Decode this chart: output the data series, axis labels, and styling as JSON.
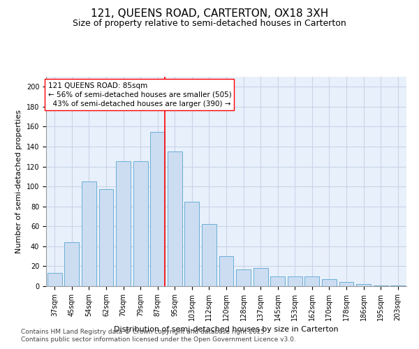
{
  "title1": "121, QUEENS ROAD, CARTERTON, OX18 3XH",
  "title2": "Size of property relative to semi-detached houses in Carterton",
  "xlabel": "Distribution of semi-detached houses by size in Carterton",
  "ylabel": "Number of semi-detached properties",
  "categories": [
    "37sqm",
    "45sqm",
    "54sqm",
    "62sqm",
    "70sqm",
    "79sqm",
    "87sqm",
    "95sqm",
    "103sqm",
    "112sqm",
    "120sqm",
    "128sqm",
    "137sqm",
    "145sqm",
    "153sqm",
    "162sqm",
    "170sqm",
    "178sqm",
    "186sqm",
    "195sqm",
    "203sqm"
  ],
  "values": [
    13,
    44,
    105,
    97,
    125,
    125,
    155,
    135,
    85,
    62,
    30,
    17,
    18,
    10,
    10,
    10,
    7,
    4,
    2,
    1,
    1
  ],
  "bar_color": "#ccddf2",
  "bar_edge_color": "#6baed6",
  "vline_index": 6,
  "annotation_line1": "121 QUEENS ROAD: 85sqm",
  "annotation_line2": "← 56% of semi-detached houses are smaller (505)",
  "annotation_line3": "  43% of semi-detached houses are larger (390) →",
  "ylim": [
    0,
    210
  ],
  "yticks": [
    0,
    20,
    40,
    60,
    80,
    100,
    120,
    140,
    160,
    180,
    200
  ],
  "footer1": "Contains HM Land Registry data © Crown copyright and database right 2025.",
  "footer2": "Contains public sector information licensed under the Open Government Licence v3.0.",
  "bg_color": "#e8f0fb",
  "grid_color": "#c8d4e8",
  "title_fontsize": 11,
  "subtitle_fontsize": 9,
  "tick_fontsize": 7,
  "axis_label_fontsize": 8,
  "annotation_fontsize": 7.5,
  "footer_fontsize": 6.5
}
